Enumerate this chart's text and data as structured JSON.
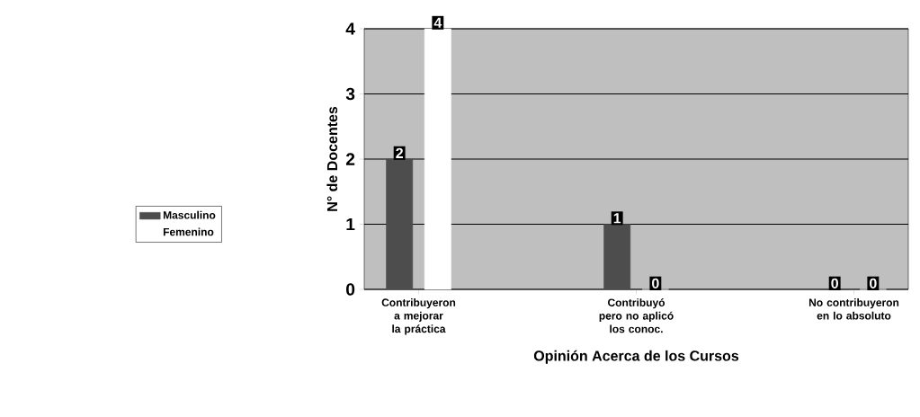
{
  "chart_data": {
    "type": "bar",
    "xlabel": "Opinión Acerca de los Cursos",
    "ylabel": "N° de Docentes",
    "categories": [
      "Contribuyeron a mejorar la práctica",
      "Contribuyó pero no aplicó los conoc.",
      "No contribuyeron en lo absoluto"
    ],
    "series": [
      {
        "name": "Masculino",
        "color": "#4d4d4d",
        "values": [
          2,
          1,
          0
        ]
      },
      {
        "name": "Femenino",
        "color": "#ffffff",
        "values": [
          4,
          0,
          0
        ]
      }
    ],
    "ylim": [
      0,
      4
    ],
    "yticks": [
      0,
      1,
      2,
      3,
      4
    ],
    "grid": "y",
    "legend": "left",
    "data_labels": true
  }
}
